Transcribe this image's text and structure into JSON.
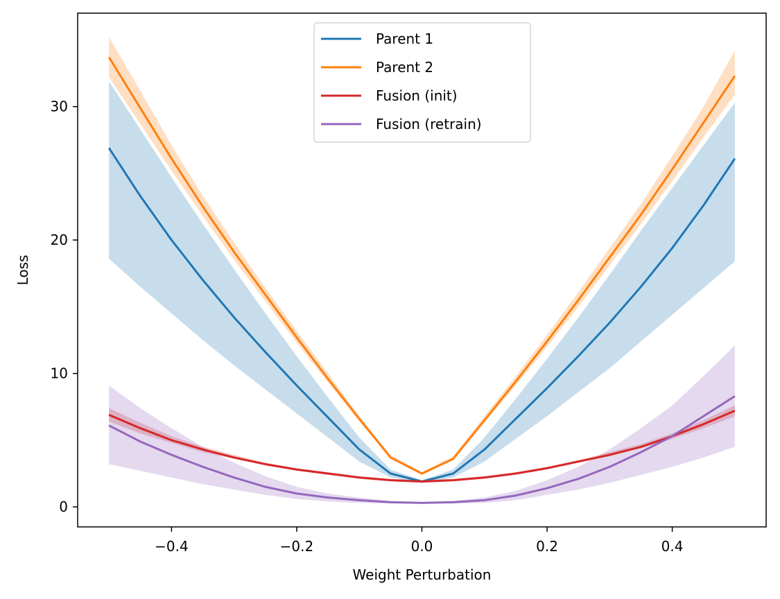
{
  "chart_data": {
    "type": "line",
    "title": "",
    "xlabel": "Weight Perturbation",
    "ylabel": "Loss",
    "xlim": [
      -0.55,
      0.55
    ],
    "ylim": [
      -1.5,
      37.0
    ],
    "xticks": [
      -0.4,
      -0.2,
      0.0,
      0.2,
      0.4
    ],
    "xtick_labels": [
      "−0.4",
      "−0.2",
      "0.0",
      "0.2",
      "0.4"
    ],
    "yticks": [
      0,
      10,
      20,
      30
    ],
    "ytick_labels": [
      "0",
      "10",
      "20",
      "30"
    ],
    "grid": false,
    "legend_position": "top-center",
    "x": [
      -0.5,
      -0.45,
      -0.4,
      -0.35,
      -0.3,
      -0.25,
      -0.2,
      -0.15,
      -0.1,
      -0.05,
      0.0,
      0.05,
      0.1,
      0.15,
      0.2,
      0.25,
      0.3,
      0.35,
      0.4,
      0.45,
      0.5
    ],
    "series": [
      {
        "name": "Parent 1",
        "color": "#1f77b4",
        "values": [
          26.9,
          23.3,
          20.0,
          17.0,
          14.2,
          11.6,
          9.1,
          6.7,
          4.3,
          2.5,
          1.9,
          2.5,
          4.3,
          6.6,
          8.9,
          11.3,
          13.8,
          16.5,
          19.4,
          22.6,
          26.1
        ],
        "lower": [
          18.6,
          16.5,
          14.5,
          12.5,
          10.6,
          8.8,
          7.0,
          5.2,
          3.4,
          2.2,
          1.8,
          2.2,
          3.4,
          5.1,
          6.8,
          8.6,
          10.4,
          12.4,
          14.4,
          16.4,
          18.4
        ],
        "upper": [
          31.9,
          28.3,
          24.7,
          21.2,
          17.8,
          14.5,
          11.3,
          8.2,
          5.2,
          2.8,
          2.0,
          2.8,
          5.2,
          8.1,
          11.1,
          14.2,
          17.4,
          20.7,
          23.9,
          27.1,
          30.3
        ]
      },
      {
        "name": "Parent 2",
        "color": "#ff7f0e",
        "values": [
          33.7,
          29.9,
          26.1,
          22.5,
          19.1,
          15.9,
          12.7,
          9.6,
          6.6,
          3.7,
          2.5,
          3.6,
          6.5,
          9.4,
          12.4,
          15.5,
          18.7,
          21.9,
          25.3,
          28.8,
          32.3
        ],
        "lower": [
          32.2,
          28.7,
          25.2,
          21.8,
          18.5,
          15.4,
          12.3,
          9.3,
          6.4,
          3.6,
          2.4,
          3.5,
          6.3,
          9.1,
          12.0,
          15.0,
          18.1,
          21.2,
          24.4,
          27.7,
          30.9
        ],
        "upper": [
          35.2,
          31.2,
          27.1,
          23.3,
          19.8,
          16.4,
          13.2,
          10.0,
          6.8,
          3.9,
          2.6,
          3.8,
          6.8,
          9.8,
          12.9,
          16.1,
          19.4,
          22.7,
          26.3,
          30.0,
          34.2
        ]
      },
      {
        "name": "Fusion (init)",
        "color": "#d62728",
        "values": [
          6.9,
          5.9,
          5.0,
          4.3,
          3.7,
          3.2,
          2.8,
          2.5,
          2.2,
          2.0,
          1.9,
          2.0,
          2.2,
          2.5,
          2.9,
          3.4,
          3.9,
          4.5,
          5.3,
          6.2,
          7.2
        ],
        "lower": [
          6.4,
          5.5,
          4.8,
          4.1,
          3.6,
          3.1,
          2.7,
          2.4,
          2.1,
          1.9,
          1.8,
          1.9,
          2.1,
          2.4,
          2.8,
          3.3,
          3.8,
          4.4,
          5.1,
          5.9,
          6.8
        ],
        "upper": [
          7.4,
          6.3,
          5.3,
          4.5,
          3.9,
          3.3,
          2.9,
          2.6,
          2.3,
          2.1,
          2.0,
          2.1,
          2.3,
          2.6,
          3.0,
          3.5,
          4.1,
          4.7,
          5.5,
          6.5,
          7.6
        ]
      },
      {
        "name": "Fusion (retrain)",
        "color": "#9467bd",
        "values": [
          6.1,
          4.9,
          3.9,
          3.0,
          2.2,
          1.5,
          1.0,
          0.7,
          0.5,
          0.35,
          0.3,
          0.35,
          0.5,
          0.85,
          1.4,
          2.1,
          3.0,
          4.1,
          5.3,
          6.8,
          8.3
        ],
        "lower": [
          3.2,
          2.7,
          2.2,
          1.7,
          1.3,
          0.9,
          0.6,
          0.4,
          0.3,
          0.25,
          0.25,
          0.25,
          0.3,
          0.5,
          0.9,
          1.3,
          1.8,
          2.4,
          3.0,
          3.7,
          4.5
        ],
        "upper": [
          9.1,
          7.4,
          5.9,
          4.5,
          3.3,
          2.3,
          1.5,
          1.0,
          0.7,
          0.45,
          0.35,
          0.45,
          0.7,
          1.2,
          2.0,
          3.0,
          4.3,
          5.9,
          7.6,
          9.8,
          12.1
        ]
      }
    ]
  }
}
